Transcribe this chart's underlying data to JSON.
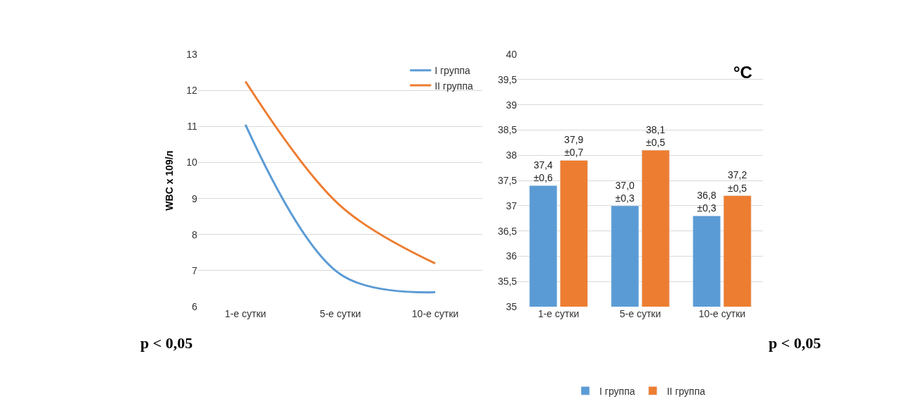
{
  "chart_data": [
    {
      "type": "line",
      "ylabel": "WBC x 109/л",
      "categories": [
        "1-е сутки",
        "5-е сутки",
        "10-е сутки"
      ],
      "series": [
        {
          "name": "I группа",
          "color": "#5b9bd5",
          "values": [
            11.05,
            6.9,
            6.4
          ]
        },
        {
          "name": "II группа",
          "color": "#ed7d31",
          "values": [
            12.25,
            8.8,
            7.2
          ]
        }
      ],
      "ylim": [
        6,
        13
      ],
      "yticks": [
        6,
        7,
        8,
        9,
        10,
        11,
        12,
        13
      ],
      "grid": "y",
      "legend": "top right",
      "marker": "none",
      "line_style": "solid",
      "annotations": [
        "p < 0,05"
      ]
    },
    {
      "type": "bar",
      "categories": [
        "1-е сутки",
        "5-е сутки",
        "10-е сутки"
      ],
      "series": [
        {
          "name": "I группа",
          "color": "#5b9bd5",
          "values": [
            37.4,
            37.0,
            36.8
          ],
          "value_labels": [
            "37,4\n±0,6",
            "37,0\n±0,3",
            "36,8\n±0,3"
          ]
        },
        {
          "name": "II группа",
          "color": "#ed7d31",
          "values": [
            37.9,
            38.1,
            37.2
          ],
          "value_labels": [
            "37,9\n±0,7",
            "38,1\n±0,5",
            "37,2\n±0,5"
          ]
        }
      ],
      "ylim": [
        35,
        40
      ],
      "yticks": [
        35,
        {
          "value": 35.5,
          "label": "35,5"
        },
        36,
        {
          "value": 36.5,
          "label": "36,5"
        },
        37,
        {
          "value": 37.5,
          "label": "37,5"
        },
        38,
        {
          "value": 38.5,
          "label": "38,5"
        },
        39,
        {
          "value": 39.5,
          "label": "39,5"
        },
        40
      ],
      "grid": "y",
      "legend": "bottom",
      "annotations": [
        "°C",
        "p < 0,05"
      ]
    }
  ]
}
